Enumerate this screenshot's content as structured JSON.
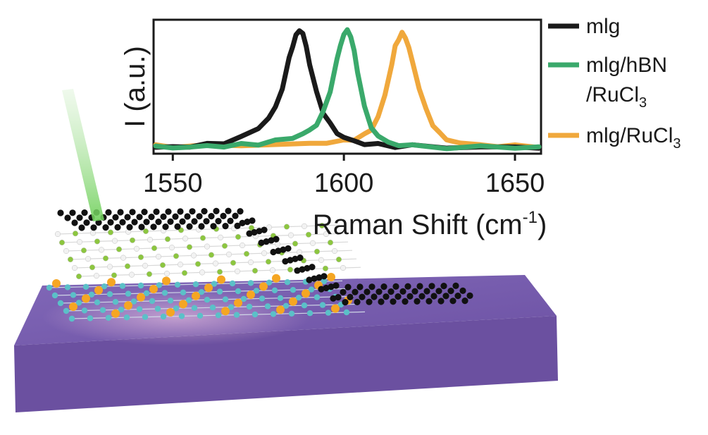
{
  "chart_data": {
    "type": "line",
    "xlabel": "Raman Shift (cm",
    "xlabel_sup": "-1",
    "xlabel_end": ")",
    "ylabel": "I (a.u.)",
    "xlim": [
      1545,
      1657
    ],
    "ylim": [
      0,
      1.05
    ],
    "grid": false,
    "legend_placement": "right",
    "x_ticks": [
      {
        "value": 1550,
        "label": "1550"
      },
      {
        "value": 1600,
        "label": "1600"
      },
      {
        "value": 1650,
        "label": "1650"
      }
    ],
    "series": [
      {
        "name": "mlg",
        "color": "#1a1a1a",
        "legend_lines": [
          "mlg"
        ],
        "center": 1587,
        "width": 5.2,
        "baseline": 0.03,
        "peak": 1.0,
        "x": [
          1545,
          1550,
          1555,
          1560,
          1565,
          1570,
          1575,
          1578,
          1580,
          1582,
          1584,
          1585,
          1586,
          1587,
          1588,
          1589,
          1590,
          1592,
          1594,
          1596,
          1598,
          1600,
          1603,
          1606,
          1610,
          1615,
          1620,
          1630,
          1640,
          1650,
          1657
        ],
        "y": [
          0.03,
          0.03,
          0.04,
          0.05,
          0.07,
          0.11,
          0.19,
          0.27,
          0.36,
          0.52,
          0.76,
          0.87,
          0.95,
          1.0,
          0.97,
          0.86,
          0.72,
          0.48,
          0.32,
          0.22,
          0.15,
          0.11,
          0.08,
          0.06,
          0.05,
          0.04,
          0.04,
          0.03,
          0.03,
          0.03,
          0.03
        ]
      },
      {
        "name": "mlg/hBN/RuCl3",
        "color": "#3aa96b",
        "legend_lines": [
          "mlg/hBN",
          "/RuCl",
          "3"
        ],
        "center": 1601,
        "width": 4.4,
        "baseline": 0.03,
        "peak": 1.0,
        "x": [
          1545,
          1550,
          1555,
          1560,
          1565,
          1570,
          1575,
          1580,
          1585,
          1588,
          1590,
          1592,
          1594,
          1596,
          1598,
          1599,
          1600,
          1601,
          1602,
          1603,
          1604,
          1606,
          1608,
          1610,
          1613,
          1616,
          1620,
          1630,
          1640,
          1650,
          1657
        ],
        "y": [
          0.03,
          0.03,
          0.03,
          0.04,
          0.04,
          0.05,
          0.06,
          0.08,
          0.11,
          0.14,
          0.17,
          0.22,
          0.32,
          0.5,
          0.75,
          0.88,
          0.96,
          1.0,
          0.95,
          0.82,
          0.66,
          0.36,
          0.2,
          0.12,
          0.07,
          0.05,
          0.04,
          0.03,
          0.03,
          0.03,
          0.03
        ]
      },
      {
        "name": "mlg/RuCl3",
        "color": "#f0a83c",
        "legend_lines": [
          "mlg/RuCl",
          "3"
        ],
        "center": 1617,
        "width": 5.6,
        "baseline": 0.04,
        "peak": 0.97,
        "x": [
          1545,
          1550,
          1560,
          1570,
          1580,
          1590,
          1595,
          1600,
          1603,
          1606,
          1608,
          1610,
          1612,
          1614,
          1615,
          1616,
          1617,
          1618,
          1619,
          1620,
          1622,
          1624,
          1626,
          1628,
          1630,
          1634,
          1640,
          1645,
          1650,
          1657
        ],
        "y": [
          0.04,
          0.04,
          0.04,
          0.05,
          0.05,
          0.06,
          0.07,
          0.08,
          0.1,
          0.13,
          0.18,
          0.28,
          0.46,
          0.72,
          0.86,
          0.93,
          0.97,
          0.94,
          0.85,
          0.74,
          0.52,
          0.34,
          0.22,
          0.14,
          0.1,
          0.06,
          0.05,
          0.04,
          0.04,
          0.04
        ]
      }
    ]
  },
  "illustration": {
    "description_icons": [
      "green-laser-beam",
      "graphene-layer",
      "hbn-layer",
      "rucl3-layer",
      "substrate-slab"
    ],
    "colors": {
      "substrate": "#6b50a0",
      "substrate_top": "#7b5eb0",
      "carbon": "#111111",
      "boron_nitride": "#8cc63f",
      "ru": "#f5a623",
      "cl": "#5bc0c8",
      "laser": "#7fd36b"
    }
  }
}
